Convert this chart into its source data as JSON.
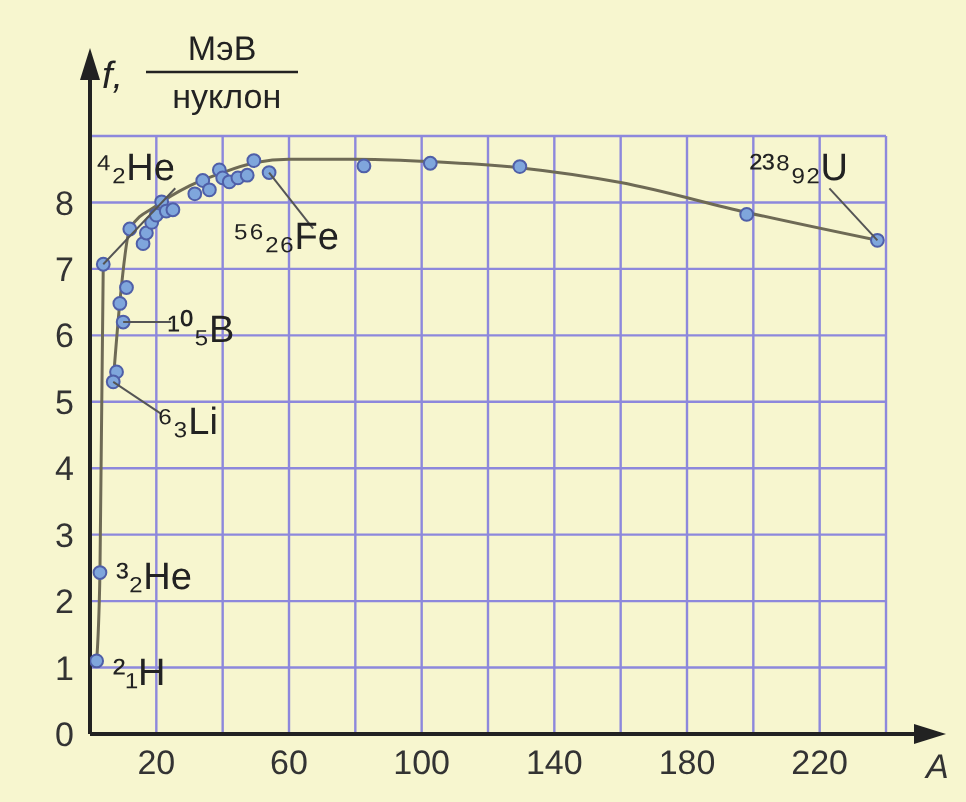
{
  "chart_data": {
    "type": "scatter",
    "xlabel": "A",
    "ylabel": "f, МэВ нуклон",
    "xlim": [
      0,
      240
    ],
    "ylim": [
      0,
      9
    ],
    "xticks": [
      {
        "value": 0,
        "label": null
      },
      20,
      {
        "value": 40,
        "label": null
      },
      60,
      {
        "value": 80,
        "label": null
      },
      100,
      {
        "value": 120,
        "label": null
      },
      140,
      {
        "value": 160,
        "label": null
      },
      180,
      {
        "value": 200,
        "label": null
      },
      220,
      {
        "value": 240,
        "label": null
      }
    ],
    "yticks": [
      0,
      1,
      2,
      3,
      4,
      5,
      6,
      7,
      8,
      {
        "value": 9,
        "label": null
      }
    ],
    "grid": true,
    "marker": "circle",
    "series": [
      {
        "type": "line",
        "color": "#6e6a55",
        "marker": "none",
        "x": [
          2,
          3,
          4
        ],
        "values": [
          1.1,
          2.43,
          7.07
        ]
      },
      {
        "type": "line",
        "color": "#6e6a55",
        "marker": "none",
        "x": [
          7,
          9,
          12,
          20,
          30,
          40,
          50,
          60,
          80,
          100,
          130,
          160,
          198,
          237.4
        ],
        "values": [
          5.3,
          6.5,
          7.6,
          7.95,
          8.25,
          8.45,
          8.6,
          8.65,
          8.65,
          8.62,
          8.52,
          8.3,
          7.85,
          7.43
        ]
      },
      {
        "color": "#7fa6dc",
        "x": [
          2,
          3,
          4,
          9,
          11,
          10,
          8,
          7,
          12,
          16,
          17,
          18.6,
          20,
          21.6,
          23,
          25,
          31.6,
          34,
          36,
          39,
          40,
          42,
          44.6,
          47.4,
          49.4,
          54,
          82.6,
          102.6,
          129.6,
          198,
          237.4
        ],
        "values": [
          1.1,
          2.43,
          7.07,
          6.48,
          6.72,
          6.2,
          5.45,
          5.3,
          7.6,
          7.38,
          7.54,
          7.7,
          7.81,
          8.01,
          7.87,
          7.89,
          8.13,
          8.33,
          8.19,
          8.49,
          8.37,
          8.31,
          8.37,
          8.41,
          8.63,
          8.45,
          8.55,
          8.59,
          8.54,
          7.82,
          7.43
        ]
      }
    ],
    "annotations": [
      {
        "text": "⁴₂He",
        "x": 4,
        "y": 7.07
      },
      {
        "text": "⁵⁶₂₆Fe",
        "x": 54,
        "y": 8.45
      },
      {
        "text": "¹⁰₅B",
        "x": 10,
        "y": 6.2
      },
      {
        "text": "⁶₃Li",
        "x": 7,
        "y": 5.3
      },
      {
        "text": "³₂He",
        "x": 3,
        "y": 2.43
      },
      {
        "text": "²₁H",
        "x": 2,
        "y": 1.1
      },
      {
        "text": "²³⁸₉₂U",
        "x": 237.4,
        "y": 7.43
      }
    ]
  }
}
